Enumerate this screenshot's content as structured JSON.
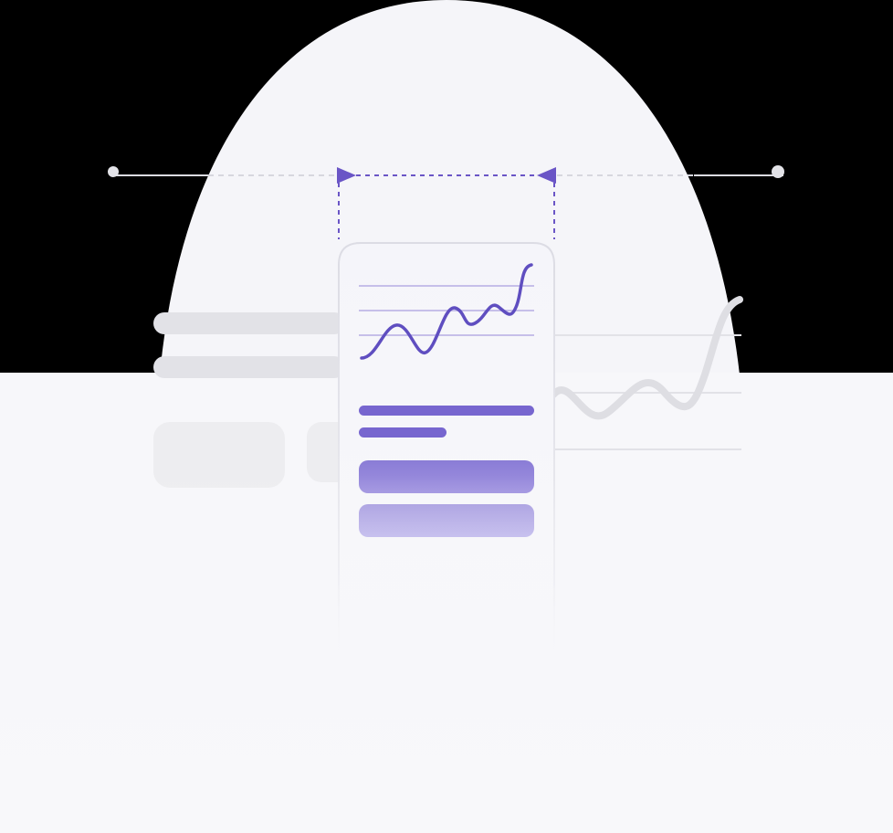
{
  "colors": {
    "background": "#000000",
    "backdrop": "#f6f6fa",
    "accent": "#6a55c6",
    "accent_light": "#8d80d8",
    "skeleton": "#e0e0e5",
    "skeleton_soft": "#eeeef1",
    "frame_line": "#dcdce2",
    "card_border": "#e4e4ea",
    "card_fill": "#f7f7fb"
  },
  "icons": {
    "left_handle": "circle-handle-icon",
    "right_handle": "circle-handle-icon",
    "left_arrow": "triangle-right-icon",
    "right_arrow": "triangle-left-icon"
  }
}
